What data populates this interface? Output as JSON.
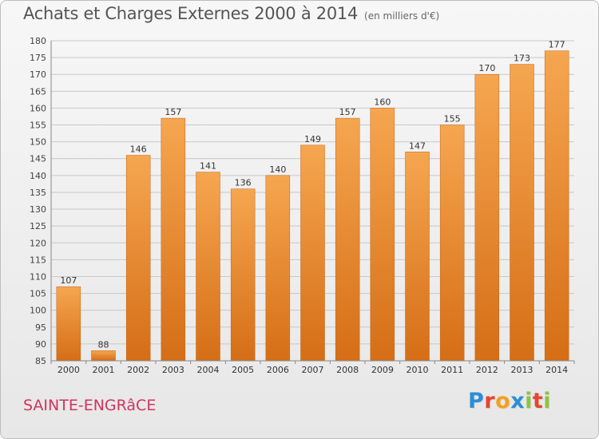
{
  "title": "Achats et Charges Externes 2000 à 2014",
  "unit": "(en milliers d'€)",
  "commune": "SAINTE-ENGRâCE",
  "brand": {
    "letters": [
      "P",
      "r",
      "o",
      "x",
      "i",
      "t",
      "i"
    ],
    "colors": [
      "#2a8fd6",
      "#e7452e",
      "#f4a01c",
      "#2a8fd6",
      "#8cc43f",
      "#e7452e",
      "#8cc43f"
    ]
  },
  "colors": {
    "bar_light": "#f6a650",
    "bar_dark": "#d56e16",
    "grid": "#c8c8c8"
  },
  "chart_data": {
    "type": "bar",
    "title": "Achats et Charges Externes 2000 à 2014",
    "categories": [
      "2000",
      "2001",
      "2002",
      "2003",
      "2004",
      "2005",
      "2006",
      "2007",
      "2008",
      "2009",
      "2010",
      "2011",
      "2012",
      "2013",
      "2014"
    ],
    "values": [
      107,
      88,
      146,
      157,
      141,
      136,
      140,
      149,
      157,
      160,
      147,
      155,
      170,
      173,
      177
    ],
    "ylim": [
      85,
      180
    ],
    "yticks": [
      85,
      90,
      95,
      100,
      105,
      110,
      115,
      120,
      125,
      130,
      135,
      140,
      145,
      150,
      155,
      160,
      165,
      170,
      175,
      180
    ],
    "grid": true
  }
}
